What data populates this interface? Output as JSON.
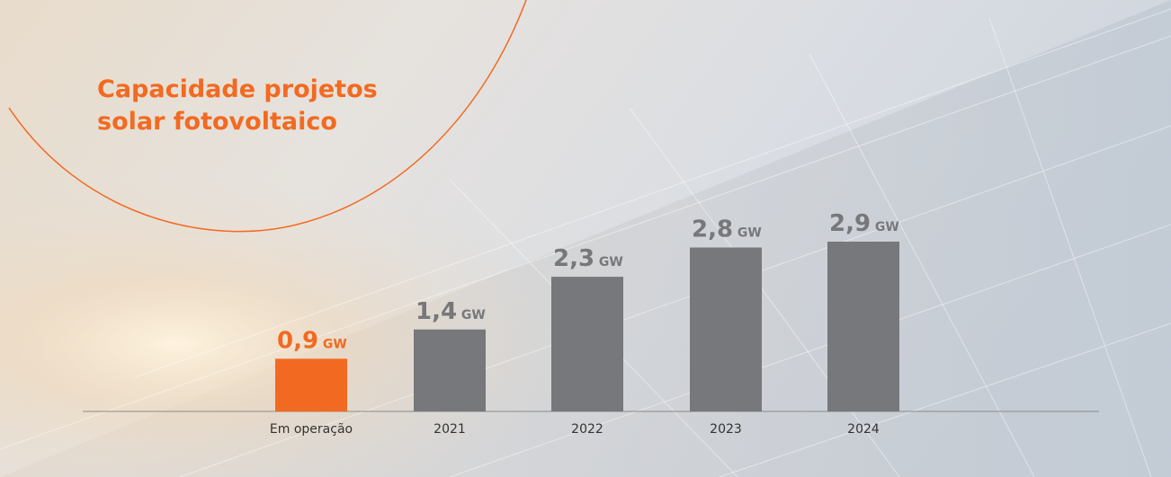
{
  "chart_data": {
    "type": "bar",
    "title": "Capacidade projetos solar fotovoltaico",
    "categories": [
      "Em operação",
      "2021",
      "2022",
      "2023",
      "2024"
    ],
    "values": [
      0.9,
      1.4,
      2.3,
      2.8,
      2.9
    ],
    "value_labels": [
      "0,9 GW",
      "1,4 GW",
      "2,3 GW",
      "2,8 GW",
      "2,9 GW"
    ],
    "colors": [
      "#f26a21",
      "#77787b",
      "#77787b",
      "#77787b",
      "#77787b"
    ]
  }
}
